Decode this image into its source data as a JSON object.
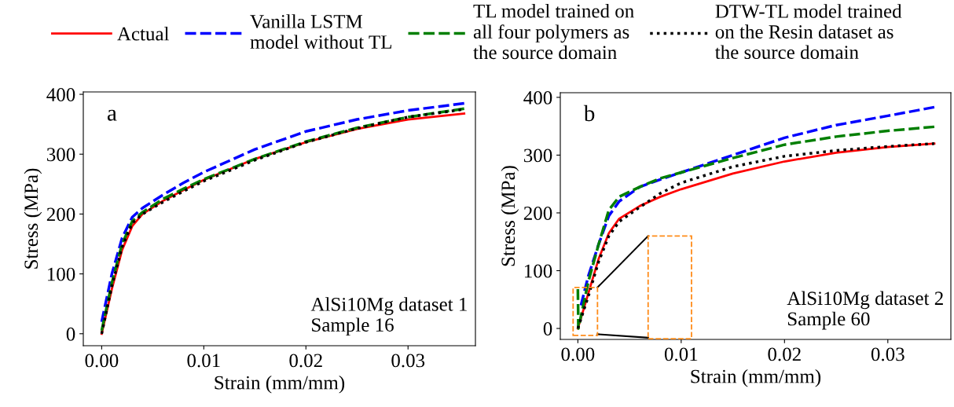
{
  "chart_data": [
    {
      "type": "line",
      "xlabel": "Strain (mm/mm)",
      "ylabel": "Stress (MPa)",
      "xlim": [
        -0.0018,
        0.0366
      ],
      "ylim": [
        -20,
        404
      ],
      "xticks": [
        {
          "value": 0,
          "label": "0.00"
        },
        0.01,
        0.02,
        0.03
      ],
      "yticks": [
        0,
        100,
        200,
        300,
        400
      ],
      "grid": false,
      "legend": "top",
      "annotations": [
        "a",
        "AlSi10Mg dataset 1\nSample 16"
      ],
      "series": [
        {
          "name": "Actual",
          "color": "#ff0000",
          "line_style": "solid",
          "x": [
            0,
            0.001,
            0.002,
            0.003,
            0.004,
            0.006,
            0.008,
            0.01,
            0.015,
            0.02,
            0.025,
            0.03,
            0.0355
          ],
          "values": [
            0,
            75,
            140,
            180,
            200,
            222,
            240,
            257,
            292,
            320,
            342,
            358,
            368
          ]
        },
        {
          "name": "Vanilla LSTM\nmodel without TL",
          "color": "#0000ff",
          "line_style": "dashed",
          "x": [
            0,
            0.001,
            0.002,
            0.003,
            0.004,
            0.006,
            0.008,
            0.01,
            0.015,
            0.02,
            0.025,
            0.03,
            0.0355
          ],
          "values": [
            20,
            100,
            160,
            195,
            210,
            232,
            252,
            270,
            308,
            338,
            358,
            373,
            385
          ]
        },
        {
          "name": "TL model trained on\nall four polymers as\nthe source domain",
          "color": "#007f00",
          "line_style": "dashed",
          "x": [
            0,
            0.001,
            0.002,
            0.003,
            0.004,
            0.006,
            0.008,
            0.01,
            0.015,
            0.02,
            0.025,
            0.03,
            0.0355
          ],
          "values": [
            5,
            85,
            150,
            188,
            203,
            225,
            242,
            258,
            292,
            321,
            344,
            362,
            376
          ]
        },
        {
          "name": "DTW-TL model trained\non the Resin dataset as\nthe source domain",
          "color": "#000000",
          "line_style": "dotted",
          "x": [
            0,
            0.001,
            0.002,
            0.003,
            0.004,
            0.006,
            0.008,
            0.01,
            0.015,
            0.02,
            0.025,
            0.03,
            0.0355
          ],
          "values": [
            0,
            80,
            145,
            185,
            200,
            220,
            238,
            255,
            290,
            320,
            343,
            362,
            375
          ]
        }
      ]
    },
    {
      "type": "line",
      "xlabel": "Strain (mm/mm)",
      "ylabel": "Stress (MPa)",
      "xlim": [
        -0.0017,
        0.0361
      ],
      "ylim": [
        -19,
        408
      ],
      "xticks": [
        {
          "value": 0,
          "label": "0.00"
        },
        0.01,
        0.02,
        0.03
      ],
      "yticks": [
        0,
        100,
        200,
        300,
        400
      ],
      "grid": false,
      "annotations": [
        "b",
        "AlSi10Mg dataset 2\nSample 60"
      ],
      "series": [
        {
          "color": "#ff0000",
          "line_style": "solid",
          "x": [
            0,
            0.001,
            0.002,
            0.003,
            0.004,
            0.006,
            0.008,
            0.01,
            0.015,
            0.02,
            0.025,
            0.03,
            0.0345
          ],
          "values": [
            0,
            60,
            120,
            165,
            190,
            212,
            228,
            241,
            268,
            289,
            304,
            314,
            320
          ]
        },
        {
          "color": "#0000ff",
          "line_style": "dashed",
          "x": [
            0.0003,
            0.001,
            0.002,
            0.003,
            0.004,
            0.006,
            0.008,
            0.01,
            0.015,
            0.02,
            0.025,
            0.03,
            0.0345
          ],
          "values": [
            40,
            90,
            145,
            195,
            220,
            245,
            258,
            270,
            300,
            330,
            352,
            368,
            383
          ]
        },
        {
          "color": "#007f00",
          "line_style": "dashed",
          "x": [
            0,
            5e-05,
            0.001,
            0.002,
            0.003,
            0.004,
            0.006,
            0.008,
            0.01,
            0.015,
            0.02,
            0.025,
            0.03,
            0.0345
          ],
          "values": [
            68,
            0,
            80,
            145,
            205,
            228,
            245,
            260,
            270,
            295,
            318,
            332,
            342,
            349
          ]
        },
        {
          "color": "#000000",
          "line_style": "dotted",
          "x": [
            0,
            0.001,
            0.002,
            0.003,
            0.004,
            0.006,
            0.008,
            0.01,
            0.015,
            0.02,
            0.025,
            0.03,
            0.0345
          ],
          "values": [
            0,
            55,
            115,
            160,
            185,
            210,
            234,
            252,
            280,
            298,
            308,
            315,
            320
          ]
        }
      ]
    }
  ]
}
